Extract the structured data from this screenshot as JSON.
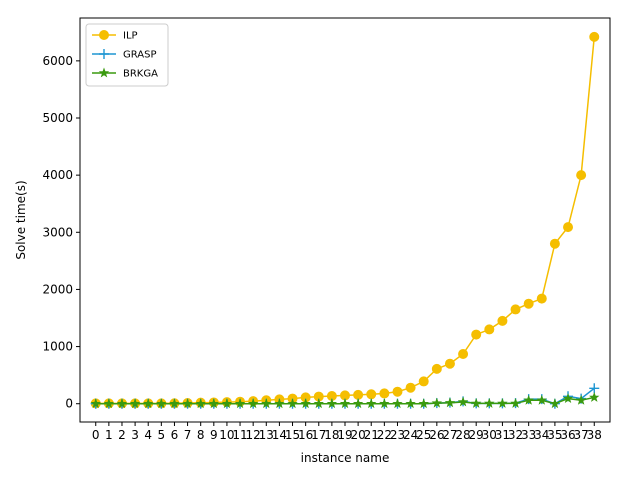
{
  "chart_data": {
    "type": "line",
    "title": "",
    "xlabel": "instance name",
    "ylabel": "Solve time(s)",
    "x": [
      0,
      1,
      2,
      3,
      4,
      5,
      6,
      7,
      8,
      9,
      10,
      11,
      12,
      13,
      14,
      15,
      16,
      17,
      18,
      19,
      20,
      21,
      22,
      23,
      24,
      25,
      26,
      27,
      28,
      29,
      30,
      31,
      32,
      33,
      34,
      35,
      36,
      37,
      38
    ],
    "x_tick_labels": [
      "0",
      "1",
      "2",
      "3",
      "4",
      "5",
      "6",
      "7",
      "8",
      "9",
      "10",
      "11",
      "12",
      "13",
      "14",
      "15",
      "16",
      "17",
      "18",
      "19",
      "20",
      "21",
      "22",
      "23",
      "24",
      "25",
      "26",
      "27",
      "28",
      "29",
      "30",
      "31",
      "32",
      "33",
      "34",
      "35",
      "36",
      "37",
      "38"
    ],
    "ylim": [
      -320,
      6750
    ],
    "y_ticks": [
      0,
      1000,
      2000,
      3000,
      4000,
      5000,
      6000
    ],
    "grid": false,
    "legend_position": "upper-left",
    "series": [
      {
        "name": "ILP",
        "color": "#f5be00",
        "marker": "circle",
        "values": [
          5,
          5,
          5,
          5,
          5,
          5,
          8,
          12,
          18,
          22,
          28,
          35,
          45,
          60,
          75,
          90,
          110,
          125,
          135,
          145,
          155,
          165,
          180,
          210,
          280,
          390,
          610,
          700,
          870,
          1210,
          1300,
          1450,
          1650,
          1750,
          1840,
          2800,
          3090,
          4000,
          6420
        ]
      },
      {
        "name": "GRASP",
        "color": "#1e96d2",
        "marker": "plus",
        "values": [
          0,
          0,
          0,
          0,
          0,
          0,
          0,
          0,
          0,
          0,
          0,
          0,
          0,
          0,
          0,
          0,
          0,
          0,
          0,
          0,
          0,
          0,
          0,
          0,
          0,
          0,
          10,
          20,
          40,
          5,
          5,
          5,
          10,
          80,
          80,
          0,
          130,
          90,
          270
        ]
      },
      {
        "name": "BRKGA",
        "color": "#3a9a0f",
        "marker": "star",
        "values": [
          0,
          0,
          0,
          0,
          0,
          0,
          0,
          0,
          0,
          0,
          0,
          0,
          0,
          0,
          0,
          0,
          0,
          0,
          0,
          0,
          0,
          0,
          0,
          0,
          0,
          0,
          10,
          15,
          30,
          5,
          5,
          5,
          5,
          60,
          60,
          0,
          90,
          60,
          110
        ]
      }
    ]
  }
}
